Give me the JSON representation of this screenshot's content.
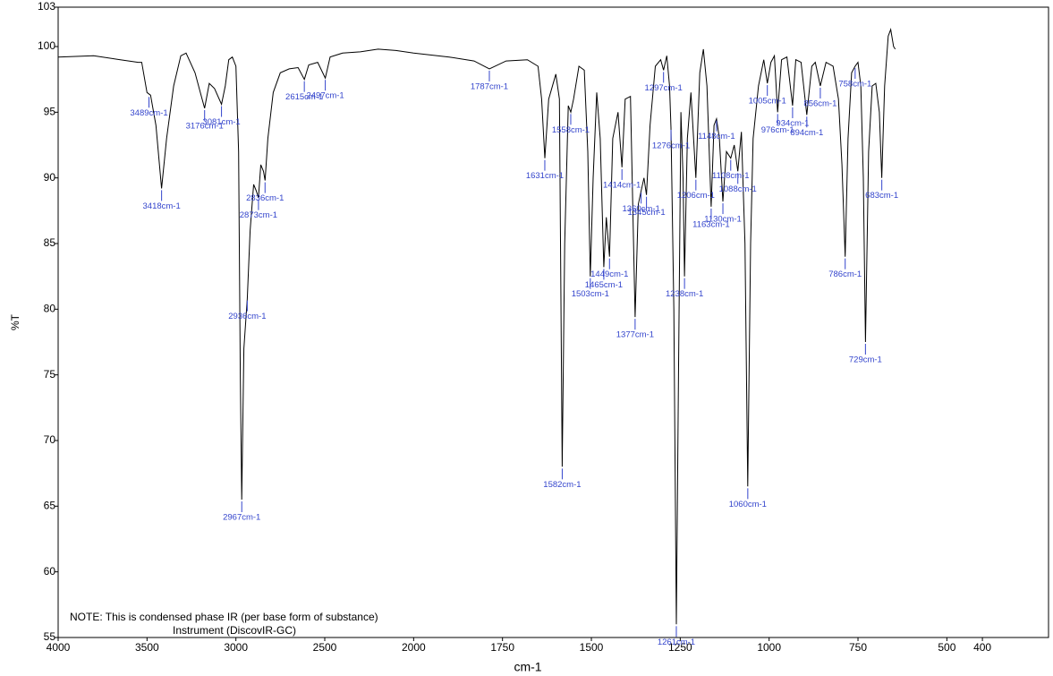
{
  "chart_data": {
    "type": "line",
    "xlabel": "cm-1",
    "ylabel": "%T",
    "notes": [
      "NOTE: This is condensed phase IR (per base form of substance)",
      "Instrument (DiscovIR-GC)"
    ],
    "xlim": [
      4000,
      214
    ],
    "x_scale_break": {
      "at": 2000,
      "factor": 2
    },
    "xticks": [
      4000,
      3500,
      3000,
      2500,
      2000,
      1750,
      1500,
      1250,
      1000,
      750,
      500,
      400
    ],
    "ylim": [
      55,
      103
    ],
    "yticks": [
      55,
      60,
      65,
      70,
      75,
      80,
      85,
      90,
      95,
      100,
      103
    ],
    "x": [
      4000,
      3800,
      3650,
      3550,
      3530,
      3500,
      3480,
      3450,
      3418,
      3390,
      3350,
      3310,
      3280,
      3230,
      3200,
      3176,
      3150,
      3120,
      3081,
      3060,
      3040,
      3020,
      3000,
      2985,
      2975,
      2967,
      2955,
      2936,
      2920,
      2900,
      2885,
      2873,
      2860,
      2845,
      2836,
      2820,
      2790,
      2750,
      2700,
      2650,
      2615,
      2590,
      2540,
      2497,
      2470,
      2400,
      2300,
      2200,
      2100,
      2000,
      1900,
      1830,
      1787,
      1740,
      1680,
      1650,
      1640,
      1631,
      1620,
      1600,
      1590,
      1582,
      1575,
      1565,
      1558,
      1550,
      1535,
      1520,
      1510,
      1503,
      1495,
      1485,
      1475,
      1465,
      1458,
      1449,
      1440,
      1425,
      1414,
      1405,
      1390,
      1377,
      1368,
      1360,
      1352,
      1345,
      1335,
      1320,
      1305,
      1297,
      1288,
      1280,
      1276,
      1268,
      1261,
      1255,
      1248,
      1242,
      1238,
      1230,
      1220,
      1206,
      1195,
      1185,
      1175,
      1163,
      1155,
      1148,
      1140,
      1130,
      1120,
      1108,
      1098,
      1088,
      1078,
      1068,
      1060,
      1052,
      1045,
      1030,
      1015,
      1005,
      995,
      985,
      976,
      965,
      950,
      934,
      925,
      910,
      894,
      880,
      870,
      856,
      840,
      820,
      805,
      795,
      786,
      778,
      768,
      758,
      750,
      742,
      735,
      729,
      720,
      710,
      700,
      690,
      683,
      675,
      665,
      658,
      650,
      645
    ],
    "series": [
      {
        "color": "#000000",
        "values": [
          99.2,
          99.3,
          99.0,
          98.8,
          98.8,
          96.5,
          96.3,
          94,
          89.2,
          93,
          97,
          99.3,
          99.5,
          98,
          96.5,
          95.3,
          97.2,
          96.8,
          95.6,
          97,
          99,
          99.2,
          98.5,
          92,
          75,
          65.5,
          77,
          80.8,
          86,
          89.5,
          89.0,
          88.5,
          91,
          90.5,
          89.8,
          93,
          96.5,
          98,
          98.3,
          98.4,
          97.5,
          98.6,
          98.8,
          97.6,
          99.2,
          99.5,
          99.6,
          99.8,
          99.7,
          99.5,
          99.2,
          98.9,
          98.3,
          98.9,
          99.0,
          98.5,
          96,
          91.5,
          96,
          97.9,
          96,
          68.0,
          85,
          95.5,
          95.0,
          96,
          98.5,
          98.2,
          92,
          82.5,
          90,
          96.5,
          93,
          83.2,
          87,
          84.0,
          93,
          95,
          90.8,
          96,
          96.2,
          79.4,
          88,
          89.0,
          90,
          88.7,
          94,
          98.5,
          99.0,
          98.2,
          99.3,
          97,
          93.8,
          80,
          56.0,
          75,
          95,
          90,
          82.5,
          93,
          96.5,
          90.0,
          98,
          99.8,
          97,
          87.8,
          94,
          94.5,
          93,
          88.2,
          92,
          91.5,
          92.5,
          90.5,
          93.5,
          85,
          66.5,
          85,
          93,
          97,
          99,
          97.2,
          98.8,
          99.3,
          95.0,
          99.0,
          99.2,
          95.5,
          99,
          98.8,
          94.8,
          98.5,
          98.8,
          97.0,
          98.8,
          98.5,
          96,
          91,
          84.0,
          93,
          98,
          98.5,
          98.8,
          97,
          90,
          77.5,
          92,
          97,
          97.2,
          95,
          90.0,
          97,
          100.8,
          101.3,
          100,
          99.8
        ]
      }
    ],
    "peak_color": "#3344cc",
    "peaks": [
      {
        "x": 3489,
        "y": 96.3,
        "label": "3489cm-1"
      },
      {
        "x": 3418,
        "y": 89.2,
        "label": "3418cm-1"
      },
      {
        "x": 3176,
        "y": 95.3,
        "label": "3176cm-1"
      },
      {
        "x": 3081,
        "y": 95.6,
        "label": "3081cm-1"
      },
      {
        "x": 2967,
        "y": 65.5,
        "label": "2967cm-1"
      },
      {
        "x": 2936,
        "y": 80.8,
        "label": "2936cm-1"
      },
      {
        "x": 2873,
        "y": 88.5,
        "label": "2873cm-1"
      },
      {
        "x": 2836,
        "y": 89.8,
        "label": "2836cm-1"
      },
      {
        "x": 2615,
        "y": 97.5,
        "label": "2615cm-1"
      },
      {
        "x": 2497,
        "y": 97.6,
        "label": "2497cm-1"
      },
      {
        "x": 1787,
        "y": 98.3,
        "label": "1787cm-1"
      },
      {
        "x": 1631,
        "y": 91.5,
        "label": "1631cm-1"
      },
      {
        "x": 1582,
        "y": 68.0,
        "label": "1582cm-1"
      },
      {
        "x": 1558,
        "y": 95.0,
        "label": "1558cm-1"
      },
      {
        "x": 1503,
        "y": 82.5,
        "label": "1503cm-1"
      },
      {
        "x": 1465,
        "y": 83.2,
        "label": "1465cm-1"
      },
      {
        "x": 1449,
        "y": 84.0,
        "label": "1449cm-1"
      },
      {
        "x": 1414,
        "y": 90.8,
        "label": "1414cm-1"
      },
      {
        "x": 1377,
        "y": 79.4,
        "label": "1377cm-1"
      },
      {
        "x": 1360,
        "y": 89.0,
        "label": "1360cm-1"
      },
      {
        "x": 1345,
        "y": 88.7,
        "label": "1345cm-1"
      },
      {
        "x": 1297,
        "y": 98.2,
        "label": "1297cm-1"
      },
      {
        "x": 1276,
        "y": 93.8,
        "label": "1276cm-1"
      },
      {
        "x": 1261,
        "y": 56.0,
        "label": "1261cm-1"
      },
      {
        "x": 1238,
        "y": 82.5,
        "label": "1238cm-1"
      },
      {
        "x": 1206,
        "y": 90.0,
        "label": "1206cm-1"
      },
      {
        "x": 1163,
        "y": 87.8,
        "label": "1163cm-1"
      },
      {
        "x": 1148,
        "y": 94.5,
        "label": "1148cm-1"
      },
      {
        "x": 1130,
        "y": 88.2,
        "label": "1130cm-1"
      },
      {
        "x": 1108,
        "y": 91.5,
        "label": "1108cm-1"
      },
      {
        "x": 1088,
        "y": 90.5,
        "label": "1088cm-1"
      },
      {
        "x": 1060,
        "y": 66.5,
        "label": "1060cm-1"
      },
      {
        "x": 1005,
        "y": 97.2,
        "label": "1005cm-1"
      },
      {
        "x": 976,
        "y": 95.0,
        "label": "976cm-1"
      },
      {
        "x": 934,
        "y": 95.5,
        "label": "934cm-1"
      },
      {
        "x": 894,
        "y": 94.8,
        "label": "894cm-1"
      },
      {
        "x": 856,
        "y": 97.0,
        "label": "856cm-1"
      },
      {
        "x": 786,
        "y": 84.0,
        "label": "786cm-1"
      },
      {
        "x": 758,
        "y": 98.5,
        "label": "758cm-1"
      },
      {
        "x": 729,
        "y": 77.5,
        "label": "729cm-1"
      },
      {
        "x": 683,
        "y": 90.0,
        "label": "683cm-1"
      }
    ]
  }
}
